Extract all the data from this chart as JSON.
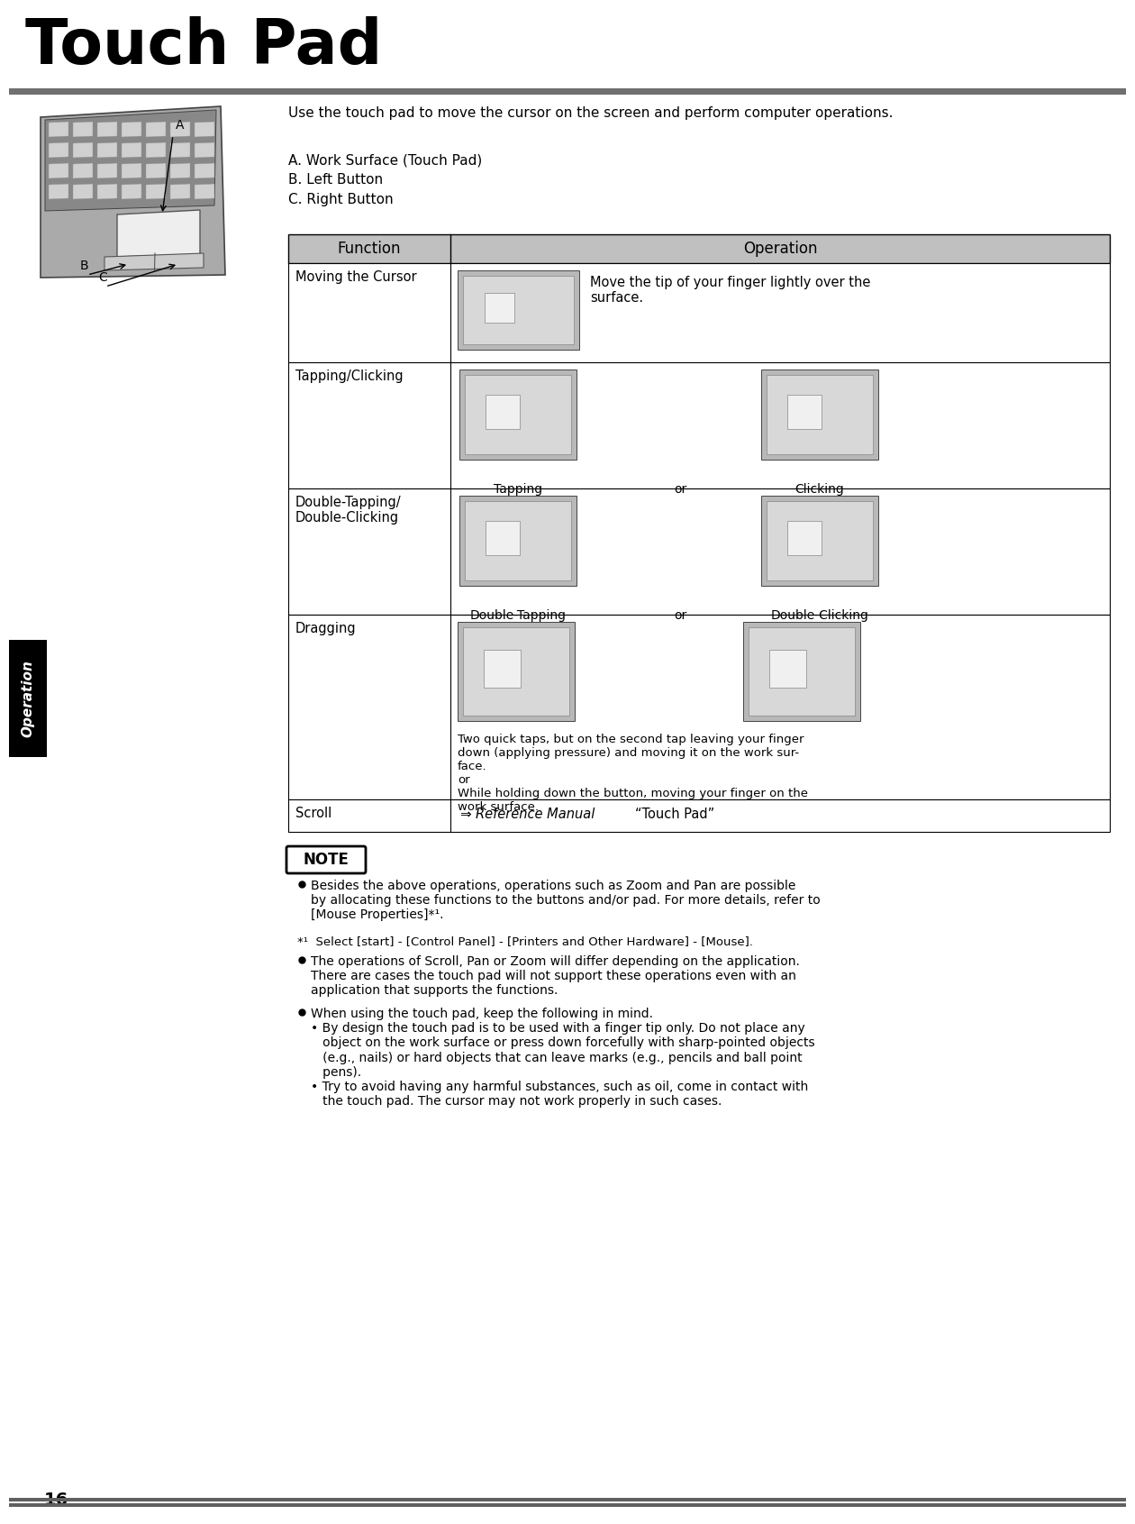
{
  "title": "Touch Pad",
  "page_number": "16",
  "tab_label": "Operation",
  "description": "Use the touch pad to move the cursor on the screen and perform computer operations.",
  "labels": [
    "A. Work Surface (Touch Pad)",
    "B. Left Button",
    "C. Right Button"
  ],
  "table_headers": [
    "Function",
    "Operation"
  ],
  "table_rows": [
    {
      "function": "Moving the Cursor",
      "operation_text": "Move the tip of your finger lightly over the\nsurface.",
      "sub_labels": []
    },
    {
      "function": "Tapping/Clicking",
      "operation_text": "",
      "sub_labels": [
        "Tapping",
        "or",
        "Clicking"
      ]
    },
    {
      "function": "Double-Tapping/\nDouble-Clicking",
      "operation_text": "",
      "sub_labels": [
        "Double-Tapping",
        "or",
        "Double-Clicking"
      ]
    },
    {
      "function": "Dragging",
      "operation_text": "Two quick taps, but on the second tap leaving your finger\ndown (applying pressure) and moving it on the work sur-\nface.\nor\nWhile holding down the button, moving your finger on the\nwork surface.",
      "sub_labels": []
    },
    {
      "function": "Scroll",
      "operation_text": "⇒ Reference Manual “Touch Pad”",
      "sub_labels": []
    }
  ],
  "note_bullets": [
    "Besides the above operations, operations such as Zoom and Pan are possible\nby allocating these functions to the buttons and/or pad. For more details, refer to\n[Mouse Properties]*¹.",
    "*¹  Select [start] - [Control Panel] - [Printers and Other Hardware] - [Mouse].",
    "The operations of Scroll, Pan or Zoom will differ depending on the application.\nThere are cases the touch pad will not support these operations even with an\napplication that supports the functions.",
    "When using the touch pad, keep the following in mind.\n• By design the touch pad is to be used with a finger tip only. Do not place any\n   object on the work surface or press down forcefully with sharp-pointed objects\n   (e.g., nails) or hard objects that can leave marks (e.g., pencils and ball point\n   pens).\n• Try to avoid having any harmful substances, such as oil, come in contact with\n   the touch pad. The cursor may not work properly in such cases."
  ],
  "bg_color": "#ffffff",
  "header_bar_color": "#707070",
  "table_header_bg": "#c0c0c0",
  "table_border_color": "#000000",
  "tab_bg_color": "#000000",
  "tab_text_color": "#ffffff",
  "title_color": "#000000",
  "body_text_color": "#000000",
  "img_bg_color": "#b8b8b8"
}
